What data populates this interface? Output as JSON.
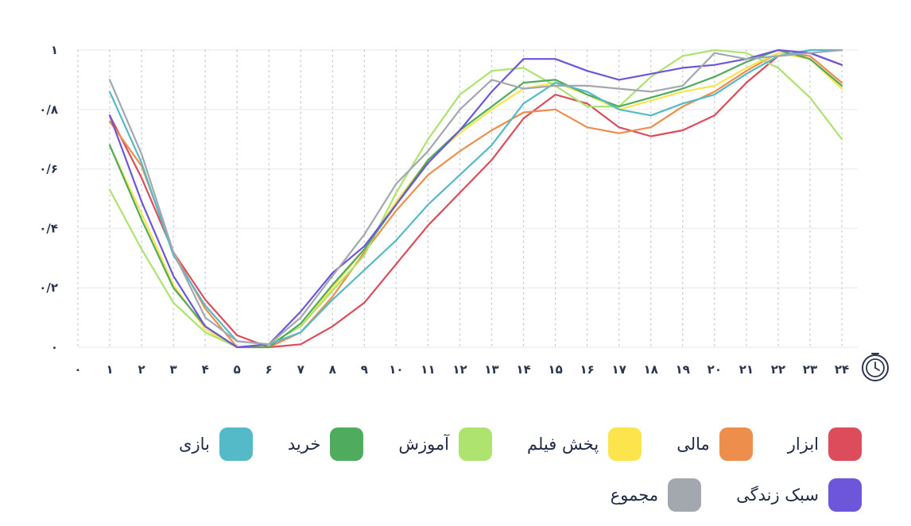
{
  "chart_data": {
    "type": "line",
    "x": [
      "0",
      "1",
      "2",
      "3",
      "4",
      "5",
      "6",
      "7",
      "8",
      "9",
      "10",
      "11",
      "12",
      "13",
      "14",
      "15",
      "16",
      "17",
      "18",
      "19",
      "20",
      "21",
      "22",
      "23",
      "24"
    ],
    "x_tick_labels": [
      "۰",
      "۱",
      "۲",
      "۳",
      "۴",
      "۵",
      "۶",
      "۷",
      "۸",
      "۹",
      "۱۰",
      "۱۱",
      "۱۲",
      "۱۳",
      "۱۴",
      "۱۵",
      "۱۶",
      "۱۷",
      "۱۸",
      "۱۹",
      "۲۰",
      "۲۱",
      "۲۲",
      "۲۳",
      "۲۴"
    ],
    "y_ticks": [
      0,
      0.2,
      0.4,
      0.6,
      0.8,
      1
    ],
    "y_tick_labels": [
      "۰",
      "۰/۲",
      "۰/۴",
      "۰/۶",
      "۰/۸",
      "۱"
    ],
    "ylim": [
      0,
      1
    ],
    "xlim": [
      0,
      24
    ],
    "grid": true,
    "legend_position": "bottom",
    "x_axis_icon": "clock-icon",
    "series": [
      {
        "name": "ابزار",
        "color": "#dc4c5a",
        "values": [
          null,
          0.78,
          0.57,
          0.32,
          0.16,
          0.04,
          0.0,
          0.01,
          0.07,
          0.15,
          0.28,
          0.41,
          0.52,
          0.63,
          0.77,
          0.85,
          0.82,
          0.74,
          0.71,
          0.73,
          0.78,
          0.89,
          0.98,
          0.99,
          0.95
        ]
      },
      {
        "name": "مالی",
        "color": "#ee8e4c",
        "values": [
          null,
          0.76,
          0.61,
          0.32,
          0.13,
          0.0,
          0.0,
          0.05,
          0.17,
          0.32,
          0.46,
          0.58,
          0.66,
          0.73,
          0.79,
          0.8,
          0.74,
          0.72,
          0.74,
          0.81,
          0.86,
          0.93,
          0.99,
          0.98,
          0.89
        ]
      },
      {
        "name": "پخش فیلم",
        "color": "#fbe44c",
        "values": [
          null,
          0.68,
          0.45,
          0.21,
          0.06,
          0.0,
          0.01,
          0.07,
          0.2,
          0.33,
          0.49,
          0.63,
          0.72,
          0.8,
          0.87,
          0.89,
          0.85,
          0.8,
          0.83,
          0.86,
          0.88,
          0.94,
          0.99,
          0.97,
          0.87
        ]
      },
      {
        "name": "آموزش",
        "color": "#ade36e",
        "values": [
          null,
          0.53,
          0.33,
          0.15,
          0.05,
          0.0,
          0.01,
          0.07,
          0.19,
          0.31,
          0.52,
          0.7,
          0.85,
          0.93,
          0.94,
          0.88,
          0.81,
          0.81,
          0.91,
          0.98,
          1.0,
          0.99,
          0.94,
          0.84,
          0.7
        ]
      },
      {
        "name": "خرید",
        "color": "#4fab5d",
        "values": [
          null,
          0.68,
          0.43,
          0.2,
          0.07,
          0.0,
          0.0,
          0.08,
          0.21,
          0.33,
          0.48,
          0.63,
          0.73,
          0.81,
          0.89,
          0.9,
          0.85,
          0.81,
          0.84,
          0.87,
          0.91,
          0.96,
          1.0,
          0.97,
          0.88
        ]
      },
      {
        "name": "بازی",
        "color": "#55bac8",
        "values": [
          null,
          0.86,
          0.62,
          0.31,
          0.14,
          0.02,
          0.01,
          0.05,
          0.16,
          0.26,
          0.36,
          0.48,
          0.58,
          0.68,
          0.82,
          0.89,
          0.86,
          0.8,
          0.78,
          0.82,
          0.85,
          0.92,
          0.98,
          1.0,
          1.0
        ]
      },
      {
        "name": "سبک زندگی",
        "color": "#6e56db",
        "values": [
          null,
          0.78,
          0.49,
          0.24,
          0.07,
          0.0,
          0.01,
          0.12,
          0.25,
          0.34,
          0.48,
          0.62,
          0.73,
          0.86,
          0.97,
          0.97,
          0.93,
          0.9,
          0.92,
          0.94,
          0.95,
          0.97,
          1.0,
          0.99,
          0.95
        ]
      },
      {
        "name": "مجموع",
        "color": "#a2a8ae",
        "values": [
          null,
          0.9,
          0.65,
          0.32,
          0.1,
          0.02,
          0.01,
          0.1,
          0.24,
          0.38,
          0.55,
          0.66,
          0.8,
          0.9,
          0.87,
          0.88,
          0.88,
          0.87,
          0.86,
          0.88,
          0.99,
          0.97,
          0.98,
          0.99,
          1.0
        ]
      }
    ]
  }
}
